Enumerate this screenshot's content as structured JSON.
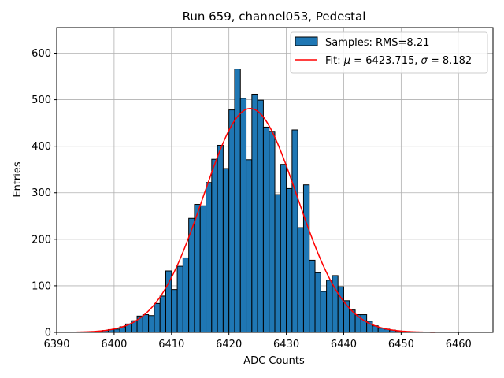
{
  "chart_data": {
    "type": "bar",
    "title": "Run 659, channel053, Pedestal",
    "xlabel": "ADC Counts",
    "ylabel": "Entries",
    "xlim": [
      6390,
      6466
    ],
    "ylim": [
      0,
      655
    ],
    "xticks": [
      6390,
      6400,
      6410,
      6420,
      6430,
      6440,
      6450,
      6460
    ],
    "yticks": [
      0,
      100,
      200,
      300,
      400,
      500,
      600
    ],
    "grid": true,
    "legend_placement": "top-right",
    "colors": {
      "bars": "#1f77b4",
      "bar_edge": "#000000",
      "fit": "#ff0000"
    },
    "histogram": {
      "name": "Samples: RMS=8.21",
      "bin_width": 1,
      "bin_starts": [
        6397,
        6398,
        6399,
        6400,
        6401,
        6402,
        6403,
        6404,
        6405,
        6406,
        6407,
        6408,
        6409,
        6410,
        6411,
        6412,
        6413,
        6414,
        6415,
        6416,
        6417,
        6418,
        6419,
        6420,
        6421,
        6422,
        6423,
        6424,
        6425,
        6426,
        6427,
        6428,
        6429,
        6430,
        6431,
        6432,
        6433,
        6434,
        6435,
        6436,
        6437,
        6438,
        6439,
        6440,
        6441,
        6442,
        6443,
        6444,
        6445,
        6446,
        6447,
        6448,
        6449,
        6450
      ],
      "counts": [
        2,
        4,
        6,
        7,
        12,
        18,
        25,
        35,
        38,
        36,
        62,
        78,
        132,
        92,
        142,
        160,
        245,
        275,
        272,
        322,
        372,
        402,
        352,
        478,
        566,
        503,
        371,
        512,
        499,
        441,
        432,
        296,
        361,
        309,
        435,
        225,
        317,
        155,
        128,
        88,
        112,
        122,
        98,
        68,
        48,
        38,
        38,
        24,
        14,
        9,
        7,
        5,
        3,
        1
      ]
    },
    "fit": {
      "name_prefix": "Fit: ",
      "name_mu": "μ",
      "name_mu_value": " = 6423.715, ",
      "name_sigma": "σ",
      "name_sigma_value": " = 8.182",
      "mu": 6423.715,
      "sigma": 8.182,
      "amplitude": 481,
      "x_range": [
        6393,
        6456
      ]
    }
  }
}
